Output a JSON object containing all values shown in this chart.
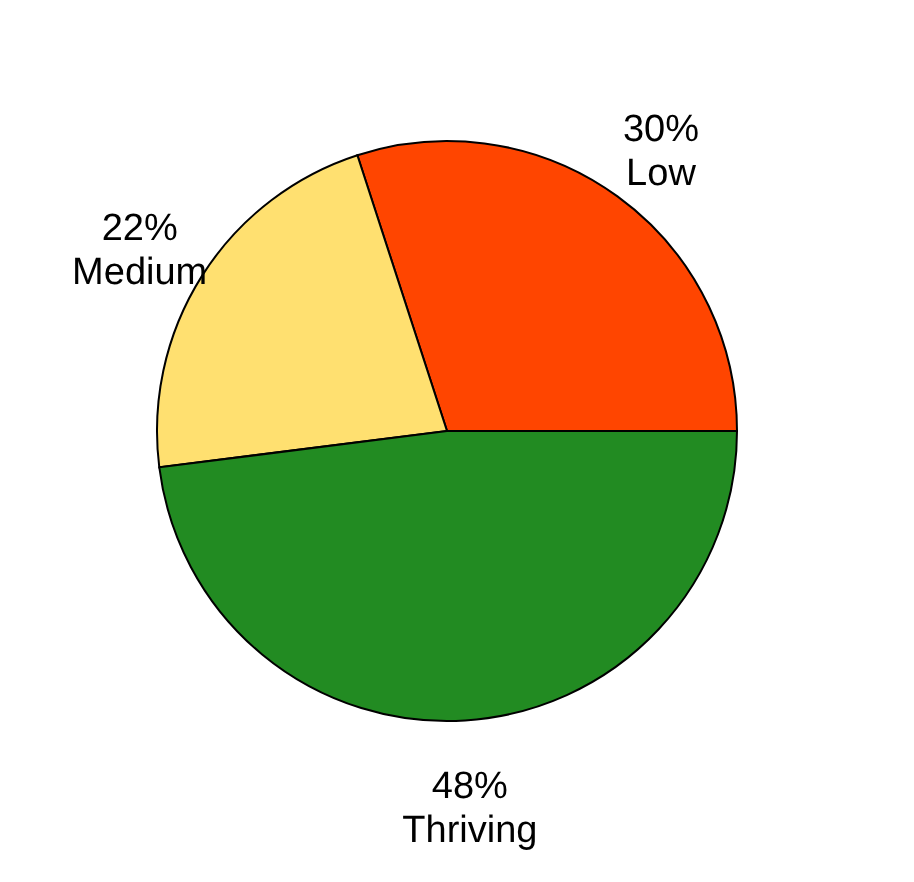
{
  "chart_data": {
    "type": "pie",
    "categories": [
      "Low",
      "Medium",
      "Thriving"
    ],
    "values": [
      30,
      22,
      48
    ],
    "value_labels": [
      "30%",
      "22%",
      "48%"
    ],
    "colors": [
      "#ff4500",
      "#ffe070",
      "#228b22"
    ]
  }
}
